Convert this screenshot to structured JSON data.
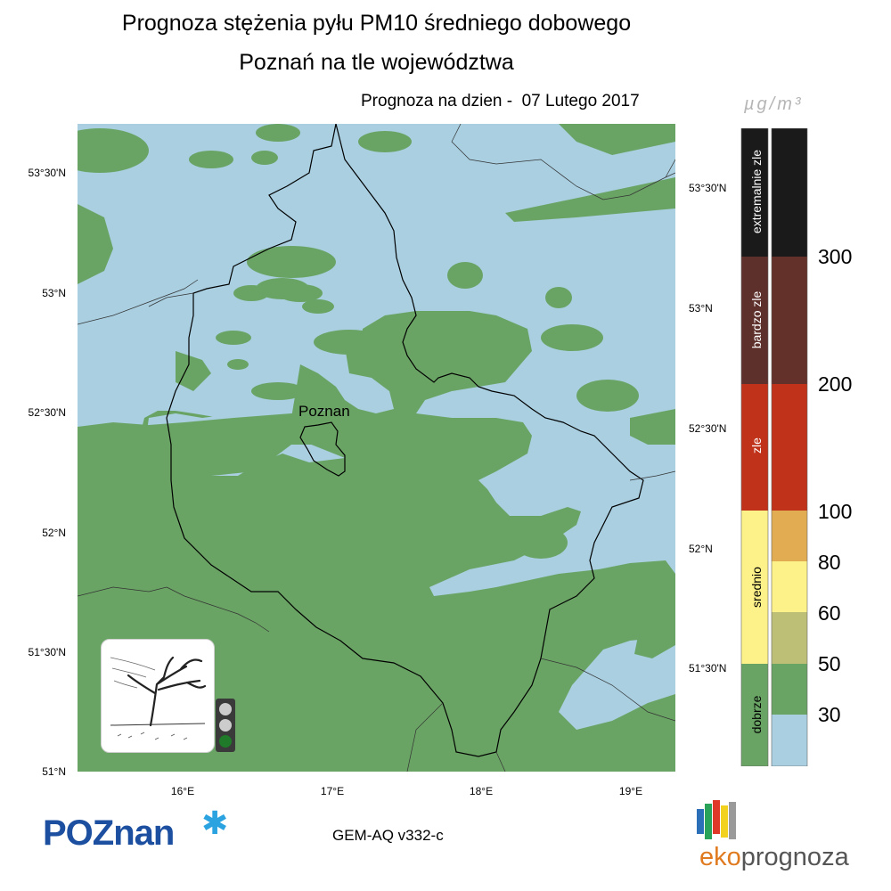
{
  "title_line1": "Prognoza stężenia pyłu PM10 średniego dobowego",
  "title_line2": "Poznań na tle województwa",
  "date_line": "Prognoza na dzien -  07 Lutego 2017",
  "unit_label": "µg/m³",
  "map": {
    "city_label": "Poznan",
    "lat_labels_left": [
      "53°30'N",
      "53°N",
      "52°30'N",
      "52°N",
      "51°30'N",
      "51°N"
    ],
    "lat_labels_right": [
      "53°30'N",
      "53°N",
      "52°30'N",
      "52°N",
      "51°30'N"
    ],
    "lon_labels": [
      "16°E",
      "17°E",
      "18°E",
      "19°E"
    ],
    "colors": {
      "dobrze": "#6aa465",
      "bardzo_dobrze": "#a9cfe1",
      "boundary": "#000000"
    }
  },
  "legend": {
    "categories": [
      {
        "label": "extremalnie zle",
        "color": "#1a1a1a"
      },
      {
        "label": "bardzo zle",
        "color": "#5e302b"
      },
      {
        "label": "zle",
        "color": "#c0321a"
      },
      {
        "label": "srednio",
        "color": "#fdf18a"
      },
      {
        "label": "dobrze",
        "color": "#6aa465"
      }
    ],
    "scale_colors": [
      "#1a1a1a",
      "#633129",
      "#c0321a",
      "#e2ad52",
      "#fdf18a",
      "#bdbf77",
      "#6aa465",
      "#a9cfe1"
    ],
    "thresholds": [
      "300",
      "200",
      "100",
      "80",
      "60",
      "50",
      "30"
    ]
  },
  "model_label": "GEM-AQ v332-c",
  "logo_poznan": "POZnan",
  "logo_eko_part1": "eko",
  "logo_eko_part2": "prognoza",
  "traffic_light": {
    "active": "green",
    "colors": {
      "off": "#cccccc",
      "green": "#1f7a2a"
    }
  }
}
